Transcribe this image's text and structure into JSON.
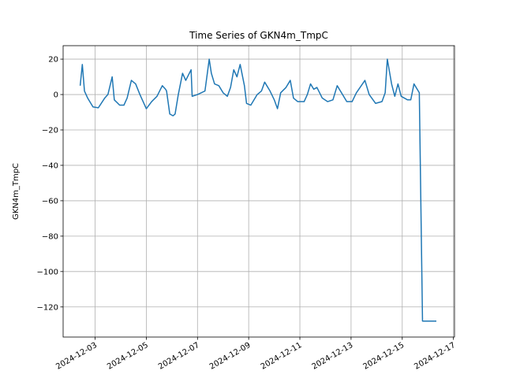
{
  "chart_data": {
    "type": "line",
    "title": "Time Series of GKN4m_TmpC",
    "y_label": "GKN4m_TmpC",
    "x": [
      "2024-12-02T10:00",
      "2024-12-02T12:00",
      "2024-12-02T14:00",
      "2024-12-02T17:00",
      "2024-12-02T22:00",
      "2024-12-03T03:00",
      "2024-12-03T09:00",
      "2024-12-03T12:00",
      "2024-12-03T16:00",
      "2024-12-03T18:00",
      "2024-12-03T23:00",
      "2024-12-04T03:00",
      "2024-12-04T06:00",
      "2024-12-04T10:00",
      "2024-12-04T14:00",
      "2024-12-04T18:00",
      "2024-12-05T00:00",
      "2024-12-05T05:00",
      "2024-12-05T10:00",
      "2024-12-05T15:00",
      "2024-12-05T18:00",
      "2024-12-05T19:00",
      "2024-12-05T22:00",
      "2024-12-06T01:00",
      "2024-12-06T03:00",
      "2024-12-06T06:00",
      "2024-12-06T10:00",
      "2024-12-06T13:00",
      "2024-12-06T18:00",
      "2024-12-06T19:00",
      "2024-12-07T00:00",
      "2024-12-07T07:00",
      "2024-12-07T11:00",
      "2024-12-07T13:00",
      "2024-12-07T16:00",
      "2024-12-07T20:00",
      "2024-12-08T00:00",
      "2024-12-08T04:00",
      "2024-12-08T07:00",
      "2024-12-08T10:00",
      "2024-12-08T13:00",
      "2024-12-08T16:00",
      "2024-12-08T20:00",
      "2024-12-08T22:00",
      "2024-12-09T02:00",
      "2024-12-09T05:00",
      "2024-12-09T08:00",
      "2024-12-09T12:00",
      "2024-12-09T15:00",
      "2024-12-09T20:00",
      "2024-12-10T00:00",
      "2024-12-10T03:00",
      "2024-12-10T06:00",
      "2024-12-10T11:00",
      "2024-12-10T15:00",
      "2024-12-10T18:00",
      "2024-12-10T22:00",
      "2024-12-11T04:00",
      "2024-12-11T07:00",
      "2024-12-11T10:00",
      "2024-12-11T13:00",
      "2024-12-11T16:00",
      "2024-12-11T21:00",
      "2024-12-12T02:00",
      "2024-12-12T07:00",
      "2024-12-12T11:00",
      "2024-12-12T16:00",
      "2024-12-12T20:00",
      "2024-12-13T01:00",
      "2024-12-13T05:00",
      "2024-12-13T13:00",
      "2024-12-13T17:00",
      "2024-12-13T23:00",
      "2024-12-14T05:00",
      "2024-12-14T08:00",
      "2024-12-14T10:00",
      "2024-12-14T14:00",
      "2024-12-14T17:00",
      "2024-12-14T20:00",
      "2024-12-14T23:00",
      "2024-12-15T05:00",
      "2024-12-15T08:00",
      "2024-12-15T11:00",
      "2024-12-15T15:00",
      "2024-12-15T16:00",
      "2024-12-15T19:00",
      "2024-12-16T08:00"
    ],
    "series": [
      {
        "color": "#1f77b4",
        "values": [
          5,
          17,
          2,
          -2,
          -7,
          -7.5,
          -2,
          0,
          10,
          -3,
          -6,
          -6,
          -2,
          8,
          6,
          0,
          -8,
          -4,
          -1,
          5,
          3,
          2,
          -11,
          -12,
          -11,
          0,
          12,
          8,
          14,
          -1,
          0,
          2,
          20,
          12,
          6,
          5,
          1,
          -1,
          4,
          14,
          10,
          17,
          5,
          -5,
          -6,
          -3,
          0,
          2,
          7,
          2,
          -3,
          -8,
          1,
          4,
          8,
          -2,
          -4,
          -4,
          0,
          6,
          3,
          4,
          -2,
          -4,
          -3,
          5,
          0,
          -4,
          -4,
          1,
          8,
          0,
          -5,
          -4,
          1,
          20,
          6,
          -1,
          6,
          -1,
          -3,
          -3,
          6,
          2,
          1,
          -128,
          -128
        ]
      }
    ],
    "xlim": [
      "2024-12-01T18:00",
      "2024-12-17T01:00"
    ],
    "xticks": [
      "2024-12-03",
      "2024-12-05",
      "2024-12-07",
      "2024-12-09",
      "2024-12-11",
      "2024-12-13",
      "2024-12-15",
      "2024-12-17"
    ],
    "ylim": [
      -137,
      27.6
    ],
    "yticks": [
      {
        "value": -120,
        "label": "−120"
      },
      {
        "value": -100,
        "label": "−100"
      },
      {
        "value": -80,
        "label": "−80"
      },
      {
        "value": -60,
        "label": "−60"
      },
      {
        "value": -40,
        "label": "−40"
      },
      {
        "value": -20,
        "label": "−20"
      },
      0,
      20
    ],
    "grid": true
  }
}
